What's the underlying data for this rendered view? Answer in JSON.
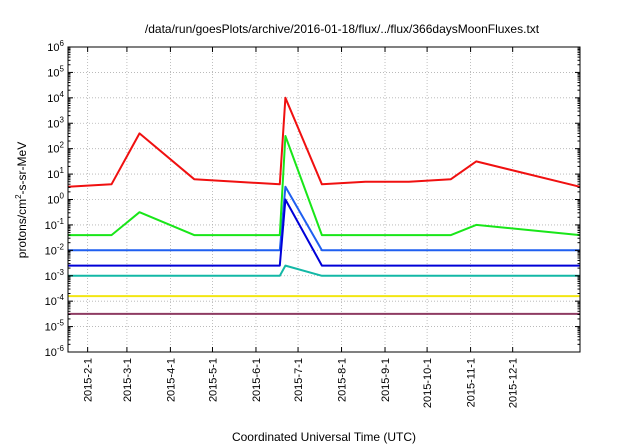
{
  "chart_data": {
    "type": "line",
    "title": "/data/run/goesPlots/archive/2016-01-18/flux/../flux/366daysMoonFluxes.txt",
    "xlabel": "Coordinated Universal Time (UTC)",
    "ylabel": {
      "pre": "protons/cm",
      "sup": "2",
      "post": "-s-sr-MeV"
    },
    "yscale": "log",
    "ylim_exp": [
      -6,
      6
    ],
    "y_ticks": [
      {
        "base": "10",
        "exp": "-6"
      },
      {
        "base": "10",
        "exp": "-5"
      },
      {
        "base": "10",
        "exp": "-4"
      },
      {
        "base": "10",
        "exp": "-3"
      },
      {
        "base": "10",
        "exp": "-2"
      },
      {
        "base": "10",
        "exp": "-1"
      },
      {
        "base": "10",
        "exp": "0"
      },
      {
        "base": "10",
        "exp": "1"
      },
      {
        "base": "10",
        "exp": "2"
      },
      {
        "base": "10",
        "exp": "3"
      },
      {
        "base": "10",
        "exp": "4"
      },
      {
        "base": "10",
        "exp": "5"
      },
      {
        "base": "10",
        "exp": "6"
      }
    ],
    "xlim": [
      "2015-01-18",
      "2016-01-18"
    ],
    "x_ticks": [
      "2015-2-1",
      "2015-3-1",
      "2015-4-1",
      "2015-5-1",
      "2015-6-1",
      "2015-7-1",
      "2015-8-1",
      "2015-9-1",
      "2015-10-1",
      "2015-11-1",
      "2015-12-1"
    ],
    "grid": true,
    "series": [
      {
        "color": "#8e3b62",
        "values_exp": [
          -4.5,
          -4.5,
          -4.5,
          -4.5,
          -4.5,
          -4.5,
          -4.5,
          -4.5,
          -4.5,
          -4.5,
          -4.5,
          -4.5,
          -4.5
        ],
        "x": [
          "2015-01-18",
          "2015-02-18",
          "2015-03-18",
          "2015-04-18",
          "2015-05-18",
          "2015-06-18",
          "2015-07-18",
          "2015-08-18",
          "2015-09-18",
          "2015-10-18",
          "2015-11-18",
          "2015-12-18",
          "2016-01-18"
        ]
      },
      {
        "color": "#f2e612",
        "values_exp": [
          -3.8,
          -3.8,
          -3.8,
          -3.8,
          -3.8,
          -3.8,
          -3.8,
          -3.8,
          -3.8,
          -3.8,
          -3.8,
          -3.8,
          -3.8
        ],
        "x": [
          "2015-01-18",
          "2015-02-18",
          "2015-03-18",
          "2015-04-18",
          "2015-05-18",
          "2015-06-18",
          "2015-07-18",
          "2015-08-18",
          "2015-09-18",
          "2015-10-18",
          "2015-11-18",
          "2015-12-18",
          "2016-01-18"
        ]
      },
      {
        "color": "#13b8a6",
        "values_exp": [
          -3.0,
          -3.0,
          -3.0,
          -3.0,
          -3.0,
          -3.0,
          -2.6,
          -3.0,
          -3.0,
          -3.0,
          -3.0,
          -3.0,
          -3.0
        ],
        "x": [
          "2015-01-18",
          "2015-02-18",
          "2015-03-18",
          "2015-04-18",
          "2015-05-18",
          "2015-06-18",
          "2015-06-22",
          "2015-07-18",
          "2015-08-18",
          "2015-09-18",
          "2015-10-18",
          "2015-11-18",
          "2016-01-18"
        ]
      },
      {
        "color": "#1f5ff0",
        "values_exp": [
          -2.0,
          -2.0,
          -2.0,
          -2.0,
          -2.0,
          -2.0,
          0.5,
          -2.0,
          -2.0,
          -2.0,
          -2.0,
          -2.0,
          -2.0
        ],
        "x": [
          "2015-01-18",
          "2015-02-18",
          "2015-03-18",
          "2015-04-18",
          "2015-05-18",
          "2015-06-18",
          "2015-06-22",
          "2015-07-18",
          "2015-08-18",
          "2015-09-18",
          "2015-10-18",
          "2015-11-18",
          "2016-01-18"
        ]
      },
      {
        "color": "#0000d8",
        "values_exp": [
          -2.6,
          -2.6,
          -2.6,
          -2.6,
          -2.6,
          -2.6,
          0.0,
          -2.6,
          -2.6,
          -2.6,
          -2.6,
          -2.6,
          -2.6
        ],
        "x": [
          "2015-01-18",
          "2015-02-18",
          "2015-03-18",
          "2015-04-18",
          "2015-05-18",
          "2015-06-18",
          "2015-06-22",
          "2015-07-18",
          "2015-08-18",
          "2015-09-18",
          "2015-10-18",
          "2015-11-18",
          "2016-01-18"
        ]
      },
      {
        "color": "#19e619",
        "values_exp": [
          -1.4,
          -1.4,
          -0.5,
          -1.4,
          -1.4,
          -1.4,
          2.5,
          -1.4,
          -1.4,
          -1.4,
          -1.4,
          -1.0,
          -1.4
        ],
        "x": [
          "2015-01-18",
          "2015-02-18",
          "2015-03-10",
          "2015-04-18",
          "2015-05-18",
          "2015-06-18",
          "2015-06-22",
          "2015-07-18",
          "2015-08-18",
          "2015-09-18",
          "2015-10-18",
          "2015-11-05",
          "2016-01-18"
        ]
      },
      {
        "color": "#f01010",
        "values_exp": [
          0.5,
          0.6,
          2.6,
          0.8,
          0.7,
          0.6,
          4.0,
          0.6,
          0.7,
          0.7,
          0.8,
          1.5,
          0.5
        ],
        "x": [
          "2015-01-18",
          "2015-02-18",
          "2015-03-10",
          "2015-04-18",
          "2015-05-18",
          "2015-06-18",
          "2015-06-22",
          "2015-07-18",
          "2015-08-18",
          "2015-09-18",
          "2015-10-18",
          "2015-11-05",
          "2016-01-18"
        ]
      }
    ]
  }
}
